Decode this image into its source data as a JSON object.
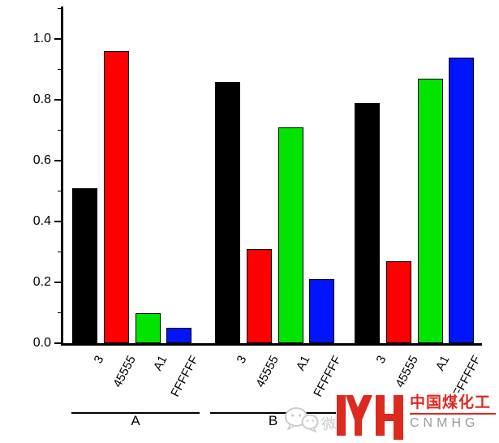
{
  "chart_data": {
    "type": "bar",
    "title": "",
    "xlabel": "",
    "ylabel": "",
    "grid": false,
    "legend": "none",
    "ylim": [
      0.0,
      1.1
    ],
    "yticks": [
      0.0,
      0.2,
      0.4,
      0.6,
      0.8,
      1.0
    ],
    "ytick_labels": [
      "0.0",
      "0.2",
      "0.4",
      "0.6",
      "0.8",
      "1.0"
    ],
    "minor_yticks": [
      0.1,
      0.3,
      0.5,
      0.7,
      0.9,
      1.1
    ],
    "categories_per_group": [
      "3",
      "45555",
      "A1",
      "FFFFFF"
    ],
    "bar_colors": [
      "#000000",
      "#ff0000",
      "#00e400",
      "#0014ff"
    ],
    "bar_border_color": "#000000",
    "groups": [
      {
        "label": "A",
        "values": [
          0.51,
          0.96,
          0.1,
          0.05
        ]
      },
      {
        "label": "B",
        "values": [
          0.86,
          0.31,
          0.71,
          0.21
        ]
      },
      {
        "label": "",
        "values": [
          0.79,
          0.27,
          0.87,
          0.94
        ]
      }
    ]
  },
  "watermark": {
    "text": "微信"
  },
  "logo": {
    "monogram": "MYH",
    "chinese_name": "中国煤化工",
    "latin_abbr": "CNMHG",
    "accent_color": "#dd2a1e",
    "latin_color": "#9b9b9b"
  }
}
